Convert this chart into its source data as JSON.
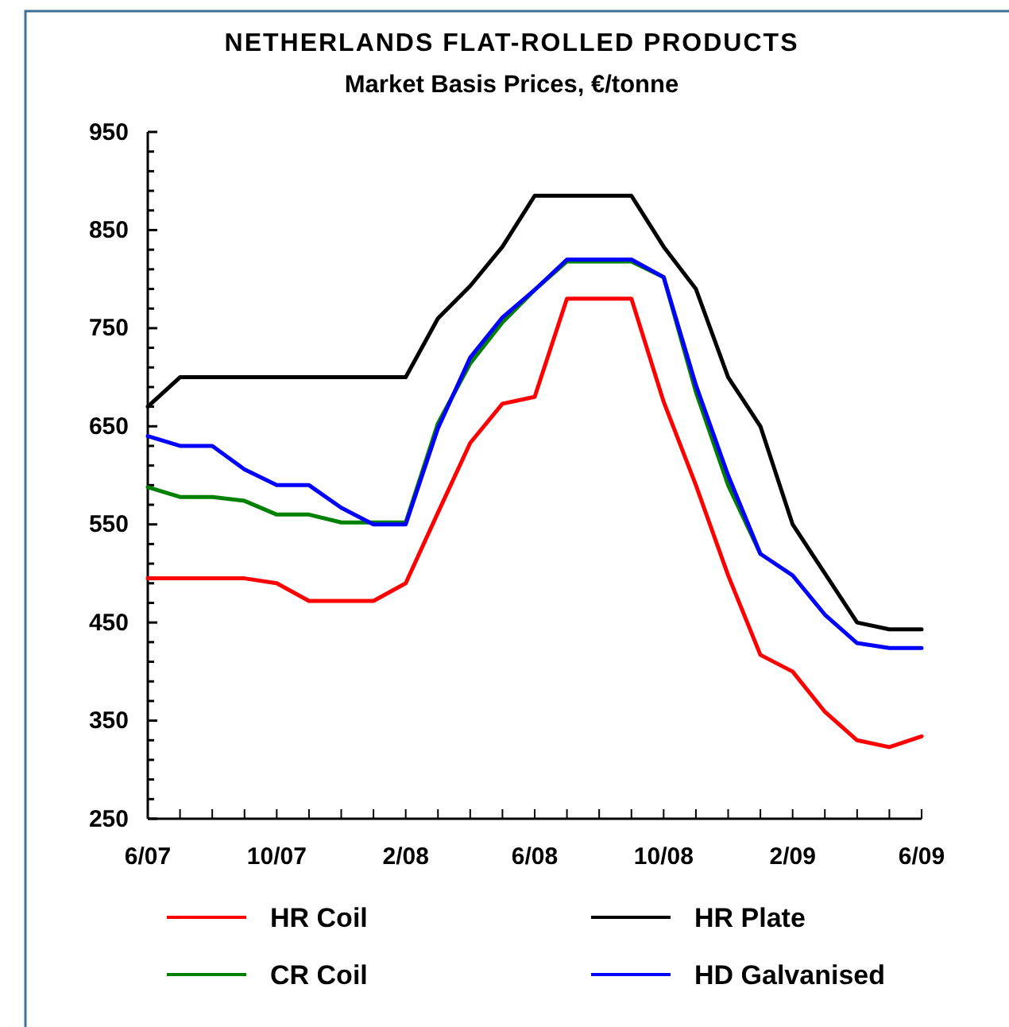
{
  "chart_data": {
    "type": "line",
    "title": "NETHERLANDS FLAT-ROLLED PRODUCTS",
    "subtitle": "Market Basis Prices, €/tonne",
    "categories": [
      "6/07",
      null,
      null,
      null,
      "10/07",
      null,
      null,
      null,
      "2/08",
      null,
      null,
      null,
      "6/08",
      null,
      null,
      null,
      "10/08",
      null,
      null,
      null,
      "2/09",
      null,
      null,
      null,
      "6/09"
    ],
    "series": [
      {
        "name": "HR Coil",
        "color": "#ff0000",
        "values": [
          495,
          495,
          495,
          495,
          490,
          472,
          472,
          472,
          490,
          562,
          633,
          673,
          680,
          780,
          780,
          780,
          675,
          590,
          498,
          417,
          400,
          359,
          330,
          323,
          334
        ]
      },
      {
        "name": "HR Plate",
        "color": "#000000",
        "values": [
          670,
          700,
          700,
          700,
          700,
          700,
          700,
          700,
          700,
          760,
          793,
          833,
          885,
          885,
          885,
          885,
          833,
          790,
          700,
          650,
          550,
          500,
          450,
          443,
          443
        ]
      },
      {
        "name": "CR Coil",
        "color": "#008000",
        "values": [
          588,
          578,
          578,
          574,
          560,
          560,
          552,
          552,
          552,
          653,
          714,
          756,
          789,
          818,
          818,
          818,
          802,
          685,
          590,
          520,
          null,
          null,
          null,
          null,
          null
        ]
      },
      {
        "name": "HD Galvanised",
        "color": "#0000ff",
        "values": [
          640,
          630,
          630,
          606,
          590,
          590,
          567,
          550,
          550,
          648,
          720,
          761,
          789,
          820,
          820,
          820,
          802,
          692,
          600,
          520,
          498,
          458,
          429,
          424,
          424
        ]
      }
    ],
    "ylim": [
      250,
      950
    ],
    "yticks": [
      250,
      {
        "value": 270,
        "label": null
      },
      {
        "value": 290,
        "label": null
      },
      {
        "value": 310,
        "label": null
      },
      {
        "value": 330,
        "label": null
      },
      350,
      {
        "value": 370,
        "label": null
      },
      {
        "value": 390,
        "label": null
      },
      {
        "value": 410,
        "label": null
      },
      {
        "value": 430,
        "label": null
      },
      450,
      {
        "value": 470,
        "label": null
      },
      {
        "value": 490,
        "label": null
      },
      {
        "value": 510,
        "label": null
      },
      {
        "value": 530,
        "label": null
      },
      550,
      {
        "value": 570,
        "label": null
      },
      {
        "value": 590,
        "label": null
      },
      {
        "value": 610,
        "label": null
      },
      {
        "value": 630,
        "label": null
      },
      650,
      {
        "value": 670,
        "label": null
      },
      {
        "value": 690,
        "label": null
      },
      {
        "value": 710,
        "label": null
      },
      {
        "value": 730,
        "label": null
      },
      750,
      {
        "value": 770,
        "label": null
      },
      {
        "value": 790,
        "label": null
      },
      {
        "value": 810,
        "label": null
      },
      {
        "value": 830,
        "label": null
      },
      850,
      {
        "value": 870,
        "label": null
      },
      {
        "value": 890,
        "label": null
      },
      {
        "value": 910,
        "label": null
      },
      {
        "value": 930,
        "label": null
      },
      950
    ],
    "grid": false,
    "legend": "bottom",
    "marker": "none",
    "line_style": "solid"
  }
}
